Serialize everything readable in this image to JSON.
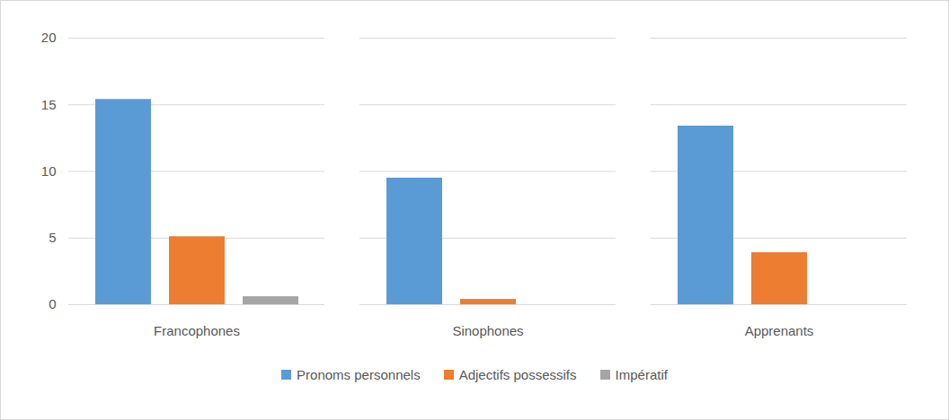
{
  "chart_data": {
    "type": "bar",
    "categories": [
      "Francophones",
      "Sinophones",
      "Apprenants"
    ],
    "series": [
      {
        "name": "Pronoms personnels",
        "color": "#5b9bd5",
        "values": [
          15.4,
          9.5,
          13.4
        ]
      },
      {
        "name": "Adjectifs possessifs",
        "color": "#ed7d31",
        "values": [
          5.1,
          0.4,
          3.9
        ]
      },
      {
        "name": "Impératif",
        "color": "#a5a5a5",
        "values": [
          0.6,
          0,
          0
        ]
      }
    ],
    "ylim": [
      0,
      20
    ],
    "yticks": [
      0,
      5,
      10,
      15,
      20
    ],
    "grid": true,
    "legend": "bottom"
  }
}
